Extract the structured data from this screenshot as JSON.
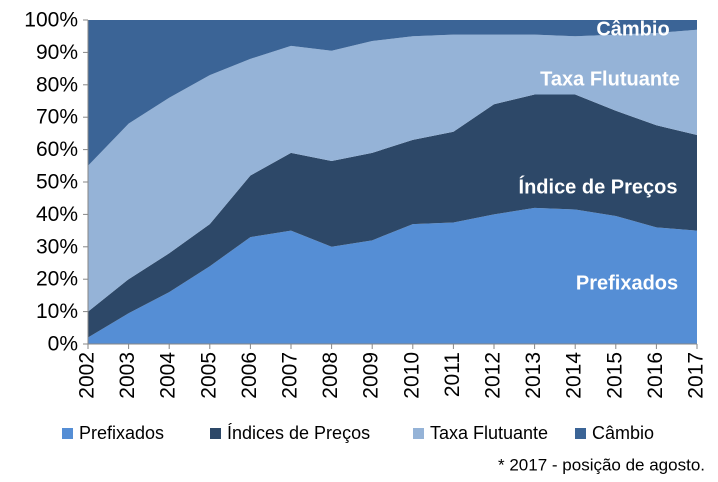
{
  "chart_data": {
    "type": "stacked_area",
    "categories": [
      "2002",
      "2003",
      "2004",
      "2005",
      "2006",
      "2007",
      "2008",
      "2009",
      "2010",
      "2011",
      "2012",
      "2013",
      "2014",
      "2015",
      "2016",
      "2017"
    ],
    "series": [
      {
        "name": "Prefixados",
        "color": "#558ed5",
        "values": [
          2,
          9.5,
          16,
          24,
          33,
          35,
          30,
          32,
          37,
          37.5,
          40,
          42,
          41.5,
          39.5,
          36,
          35
        ]
      },
      {
        "name": "Índices de Preços",
        "color": "#2d4868",
        "values": [
          8,
          10.5,
          12,
          13,
          19,
          24,
          26.5,
          27,
          26,
          28,
          34,
          35,
          35.5,
          32.5,
          31.5,
          29.5
        ]
      },
      {
        "name": "Taxa Flutuante",
        "color": "#95b3d7",
        "values": [
          45,
          48,
          48,
          46,
          36,
          33,
          34,
          34.5,
          32,
          30,
          21.5,
          18.5,
          18,
          23.5,
          28.5,
          32.5
        ]
      },
      {
        "name": "Câmbio",
        "color": "#3b6496",
        "values": [
          45,
          32,
          24,
          17,
          12,
          8,
          9.5,
          6.5,
          5,
          4.5,
          4.5,
          4.5,
          5,
          4.5,
          4,
          3
        ]
      }
    ],
    "ylim": [
      0,
      100
    ],
    "yticks": [
      {
        "value": 0,
        "label": "0%"
      },
      {
        "value": 10,
        "label": "10%"
      },
      {
        "value": 20,
        "label": "20%"
      },
      {
        "value": 30,
        "label": "30%"
      },
      {
        "value": 40,
        "label": "40%"
      },
      {
        "value": 50,
        "label": "50%"
      },
      {
        "value": 60,
        "label": "60%"
      },
      {
        "value": 70,
        "label": "70%"
      },
      {
        "value": 80,
        "label": "80%"
      },
      {
        "value": 90,
        "label": "90%"
      },
      {
        "value": 100,
        "label": "100%"
      }
    ],
    "annotations": [
      "Prefixados",
      "Índice de Preços",
      "Taxa Flutuante",
      "Câmbio"
    ],
    "footnote": "* 2017 - posição de agosto.",
    "legend": "bottom"
  }
}
